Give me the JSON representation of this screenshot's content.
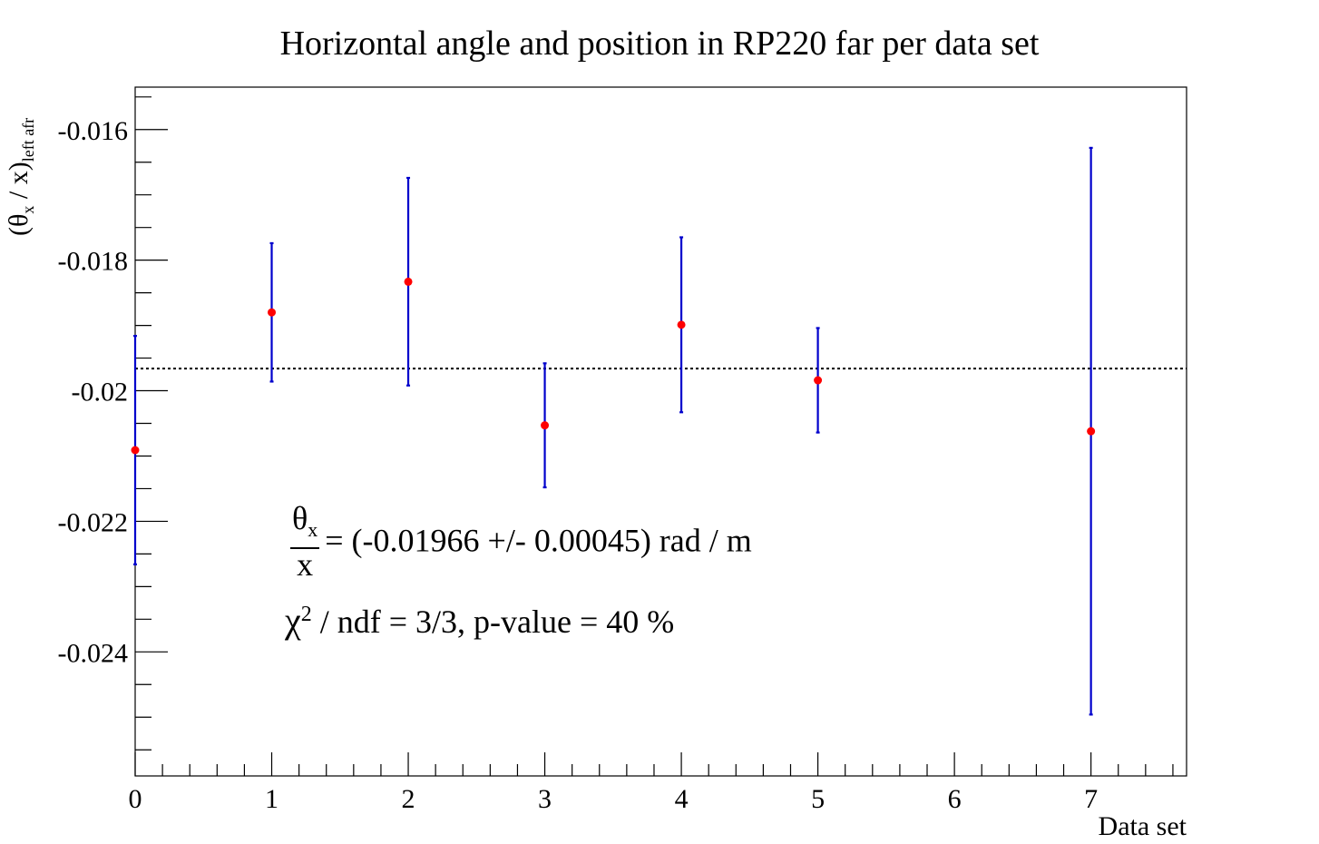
{
  "chart_data": {
    "type": "scatter",
    "title": "Horizontal angle and position in RP220 far per data set",
    "xlabel": "Data set",
    "ylabel": {
      "main": "(θ",
      "sub1": "x",
      "mid": " / x)",
      "sub2": "left afr"
    },
    "xlim": [
      0,
      7.7
    ],
    "ylim": [
      -0.0259,
      -0.01535
    ],
    "xticks": [
      0,
      1,
      2,
      3,
      4,
      5,
      6,
      7
    ],
    "xtick_labels": [
      "0",
      "1",
      "2",
      "3",
      "4",
      "5",
      "6",
      "7"
    ],
    "yticks": [
      -0.016,
      -0.018,
      -0.02,
      -0.022,
      -0.024
    ],
    "ytick_labels": [
      "-0.016",
      "-0.018",
      "-0.02",
      "-0.022",
      "-0.024"
    ],
    "points": [
      {
        "x": 0,
        "y": -0.02091,
        "err": 0.00175
      },
      {
        "x": 1,
        "y": -0.0188,
        "err": 0.00106
      },
      {
        "x": 2,
        "y": -0.01833,
        "err": 0.00159
      },
      {
        "x": 3,
        "y": -0.02053,
        "err": 0.00095
      },
      {
        "x": 4,
        "y": -0.01899,
        "err": 0.00134
      },
      {
        "x": 5,
        "y": -0.01984,
        "err": 0.0008
      },
      {
        "x": 7,
        "y": -0.02062,
        "err": 0.00434
      }
    ],
    "fit_line": -0.01966,
    "marker_color": "#ff0000",
    "error_color": "#0000cc",
    "grid": false
  },
  "annotations": {
    "fraction_num": "θ",
    "fraction_num_sub": "x",
    "fraction_den": "x",
    "fit_result": "= (-0.01966   +/-   0.00045) rad / m",
    "chi_symbol": "χ",
    "chi_sup": "2",
    "chi_text": " / ndf = 3/3, p-value = 40 %"
  }
}
